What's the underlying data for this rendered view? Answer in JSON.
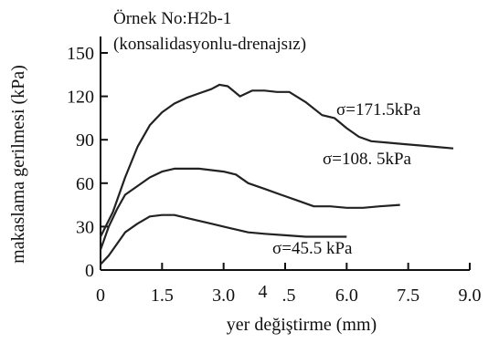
{
  "chart_data": {
    "type": "line",
    "title": "Örnek No:H2b-1",
    "subtitle": "(konsalidasyonlu-drenajsız)",
    "xlabel": "yer değiştirme (mm)",
    "ylabel": "makaslama gerilmesi (kPa)",
    "xlim": [
      0,
      9
    ],
    "ylim": [
      0,
      160
    ],
    "x_tick_labels": [
      "0",
      "1.5",
      "3.0",
      "4",
      ".5",
      "6.0",
      "7.5",
      "9.0"
    ],
    "y_tick_labels": [
      "0",
      "30",
      "60",
      "90",
      "120",
      "150"
    ],
    "grid": false,
    "series": [
      {
        "name": "σ=171.5kPa",
        "x": [
          0,
          0.3,
          0.6,
          0.9,
          1.2,
          1.5,
          1.8,
          2.1,
          2.4,
          2.7,
          2.9,
          3.1,
          3.4,
          3.7,
          4.0,
          4.3,
          4.6,
          5.0,
          5.4,
          5.7,
          6.0,
          6.3,
          6.6,
          7.0,
          7.4,
          7.8,
          8.2,
          8.6
        ],
        "y": [
          23,
          40,
          64,
          85,
          100,
          109,
          115,
          119,
          122,
          125,
          128,
          127,
          120,
          124,
          124,
          123,
          123,
          116,
          107,
          105,
          98,
          92,
          89,
          88,
          87,
          86,
          85,
          84
        ]
      },
      {
        "name": "σ=108. 5kPa",
        "x": [
          0,
          0.2,
          0.4,
          0.6,
          0.9,
          1.2,
          1.5,
          1.8,
          2.1,
          2.4,
          2.7,
          3.0,
          3.3,
          3.6,
          4.0,
          4.4,
          4.8,
          5.2,
          5.6,
          6.0,
          6.4,
          6.8,
          7.3
        ],
        "y": [
          14,
          30,
          42,
          52,
          58,
          64,
          68,
          70,
          70,
          70,
          69,
          68,
          66,
          60,
          56,
          52,
          48,
          44,
          44,
          43,
          43,
          44,
          45
        ]
      },
      {
        "name": "σ=45.5 kPa",
        "x": [
          0,
          0.2,
          0.4,
          0.6,
          0.9,
          1.2,
          1.5,
          1.8,
          2.1,
          2.4,
          2.7,
          3.0,
          3.3,
          3.6,
          4.0,
          4.5,
          5.0,
          5.5,
          6.0
        ],
        "y": [
          4,
          10,
          18,
          26,
          32,
          37,
          38,
          38,
          36,
          34,
          32,
          30,
          28,
          26,
          25,
          24,
          23,
          23,
          23
        ]
      }
    ]
  }
}
